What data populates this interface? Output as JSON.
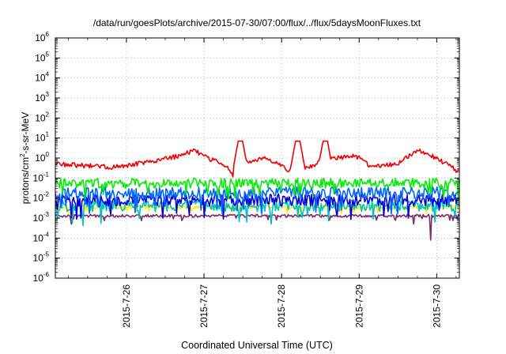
{
  "chart_data": {
    "type": "line",
    "title": "/data/run/goesPlots/archive/2015-07-30/07:00/flux/../flux/5daysMoonFluxes.txt",
    "xlabel": "Coordinated Universal Time (UTC)",
    "ylabel": {
      "pre": "protons/cm",
      "sup": "2",
      "post": "-s-sr-MeV"
    },
    "yscale": "log",
    "ylim_exp": [
      -6,
      6
    ],
    "xlim": [
      "2015-07-25 02:00",
      "2015-07-30 07:00"
    ],
    "xticks": [
      {
        "label": "2015-7-26",
        "value": "2015-07-26 00:00"
      },
      {
        "label": "2015-7-27",
        "value": "2015-07-27 00:00"
      },
      {
        "label": "2015-7-28",
        "value": "2015-07-28 00:00"
      },
      {
        "label": "2015-7-29",
        "value": "2015-07-29 00:00"
      },
      {
        "label": "2015-7-30",
        "value": "2015-07-30 00:00"
      }
    ],
    "grid": true,
    "legend": "none",
    "series": [
      {
        "color": "#ffee00",
        "level": 0.0035,
        "amp": 0.1,
        "dips": 0.05,
        "spikes": [],
        "dipEvents": []
      },
      {
        "color": "#7b2a63",
        "level": 0.0013,
        "amp": 0.07,
        "dips": 0.03,
        "spikes": [],
        "dipEvents": [
          {
            "x": "2015-07-25 07:00",
            "v": 0.0005
          },
          {
            "x": "2015-07-28 15:00",
            "v": 0.0008
          },
          {
            "x": "2015-07-29 17:00",
            "v": 0.0005
          },
          {
            "x": "2015-07-29 22:00",
            "v": 8e-05
          }
        ]
      },
      {
        "color": "#00c2c2",
        "level": 0.004,
        "amp": 0.28,
        "dips": 0.08,
        "spikes": [],
        "dipEvents": []
      },
      {
        "color": "#0000dd",
        "level": 0.008,
        "amp": 0.3,
        "dips": 0.06,
        "spikes": [],
        "dipEvents": []
      },
      {
        "color": "#0066ff",
        "level": 0.018,
        "amp": 0.3,
        "dips": 0.06,
        "spikes": [],
        "dipEvents": []
      },
      {
        "color": "#00ee00",
        "level": 0.055,
        "amp": 0.25,
        "dips": 0.05,
        "spikes": [],
        "dipEvents": []
      },
      {
        "color": "#ee0000",
        "level": 0.5,
        "amp": 0.12,
        "dips": 0.0,
        "segments": [
          [
            "2015-07-25 02:00",
            0.5
          ],
          [
            "2015-07-25 20:00",
            0.35
          ],
          [
            "2015-07-26 09:00",
            0.7
          ],
          [
            "2015-07-26 17:00",
            1.4
          ],
          [
            "2015-07-26 21:00",
            2.5
          ],
          [
            "2015-07-27 00:00",
            1.2
          ],
          [
            "2015-07-27 07:00",
            0.4
          ],
          [
            "2015-07-27 09:00",
            0.12
          ],
          [
            "2015-07-27 12:00",
            0.6
          ],
          [
            "2015-07-27 19:00",
            1.0
          ],
          [
            "2015-07-28 02:00",
            0.25
          ],
          [
            "2015-07-28 08:00",
            0.35
          ],
          [
            "2015-07-28 15:00",
            1.0
          ],
          [
            "2015-07-28 23:00",
            1.2
          ],
          [
            "2015-07-29 04:00",
            0.35
          ],
          [
            "2015-07-29 12:00",
            0.5
          ],
          [
            "2015-07-29 18:00",
            2.5
          ],
          [
            "2015-07-30 00:00",
            1.0
          ],
          [
            "2015-07-30 07:00",
            0.2
          ]
        ],
        "spikes": [
          {
            "x": "2015-07-27 11:15",
            "v": 7
          },
          {
            "x": "2015-07-28 05:00",
            "v": 7
          },
          {
            "x": "2015-07-28 13:30",
            "v": 7
          }
        ],
        "dipEvents": []
      }
    ]
  }
}
